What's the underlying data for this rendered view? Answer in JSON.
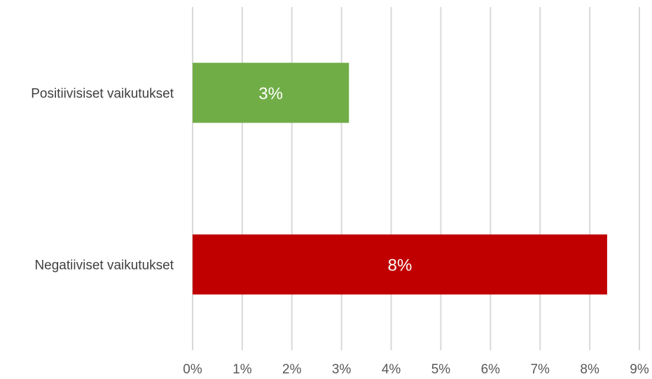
{
  "chart_data": {
    "type": "bar",
    "orientation": "horizontal",
    "categories": [
      "Positiivisiset vaikutukset",
      "Negatiiviset vaikutukset"
    ],
    "values": [
      3.15,
      8.35
    ],
    "data_labels": [
      "3%",
      "8%"
    ],
    "bar_colors": [
      "#70ad47",
      "#c00000"
    ],
    "xlim": [
      0,
      9
    ],
    "x_ticks": [
      "0%",
      "1%",
      "2%",
      "3%",
      "4%",
      "5%",
      "6%",
      "7%",
      "8%",
      "9%"
    ],
    "grid": true,
    "legend": false,
    "title": "",
    "xlabel": "",
    "ylabel": ""
  }
}
